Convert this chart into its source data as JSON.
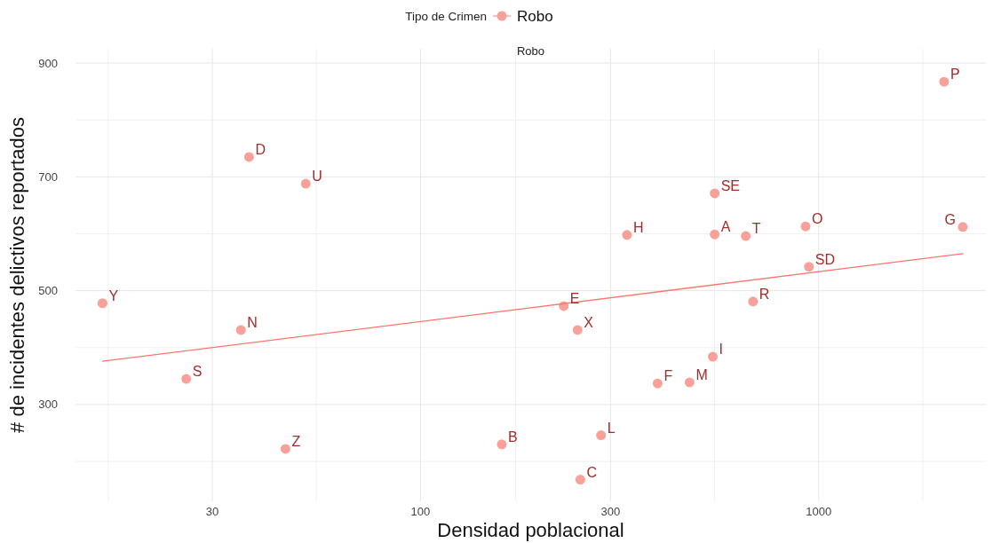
{
  "chart_data": {
    "type": "scatter",
    "subtitle": "Robo",
    "xlabel": "Densidad poblacional",
    "ylabel": "# de incidentes delictivos reportados",
    "legend_title": "Tipo de Crimen",
    "legend": "top",
    "grid": true,
    "log": "x",
    "xlim": [
      13.6,
      2630
    ],
    "xticks": [
      30,
      100,
      300,
      1000
    ],
    "ylim": [
      130,
      925
    ],
    "yticks": [
      300,
      500,
      700,
      900
    ],
    "series": [
      {
        "name": "Robo",
        "color": "#f8a19a",
        "marker": "circle",
        "x": [
          15.9,
          25.8,
          35.4,
          37.1,
          45.8,
          51.5,
          160,
          252,
          229,
          248,
          284,
          330,
          394,
          474,
          542,
          548,
          548,
          656,
          684,
          927,
          945,
          2065,
          2301
        ],
        "values": [
          478,
          345,
          431,
          735,
          222,
          688,
          230,
          168,
          473,
          431,
          246,
          598,
          337,
          339,
          384,
          599,
          671,
          596,
          481,
          613,
          542,
          867,
          612
        ]
      },
      {
        "type": "line",
        "color": "#f8766d",
        "x": [
          15.9,
          2301
        ],
        "values": [
          376,
          565
        ]
      }
    ],
    "annotations": [
      {
        "text": "Y",
        "x": 15.9,
        "y": 478
      },
      {
        "text": "S",
        "x": 25.8,
        "y": 345
      },
      {
        "text": "N",
        "x": 35.4,
        "y": 431
      },
      {
        "text": "D",
        "x": 37.1,
        "y": 735
      },
      {
        "text": "Z",
        "x": 45.8,
        "y": 222
      },
      {
        "text": "U",
        "x": 51.5,
        "y": 688
      },
      {
        "text": "B",
        "x": 160,
        "y": 230
      },
      {
        "text": "C",
        "x": 252,
        "y": 168
      },
      {
        "text": "E",
        "x": 229,
        "y": 473
      },
      {
        "text": "X",
        "x": 248,
        "y": 431
      },
      {
        "text": "L",
        "x": 284,
        "y": 246
      },
      {
        "text": "H",
        "x": 330,
        "y": 598
      },
      {
        "text": "F",
        "x": 394,
        "y": 337
      },
      {
        "text": "M",
        "x": 474,
        "y": 339
      },
      {
        "text": "I",
        "x": 542,
        "y": 384
      },
      {
        "text": "A",
        "x": 548,
        "y": 599
      },
      {
        "text": "SE",
        "x": 548,
        "y": 671
      },
      {
        "text": "T",
        "x": 656,
        "y": 596
      },
      {
        "text": "R",
        "x": 684,
        "y": 481
      },
      {
        "text": "O",
        "x": 927,
        "y": 613
      },
      {
        "text": "SD",
        "x": 945,
        "y": 542
      },
      {
        "text": "P",
        "x": 2065,
        "y": 867
      },
      {
        "text": "G",
        "x": 2301,
        "y": 612
      }
    ]
  }
}
